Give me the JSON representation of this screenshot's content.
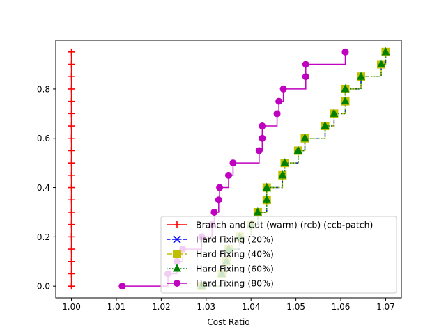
{
  "chart_data": {
    "type": "line",
    "plot_style": "step-post with markers",
    "xlabel": "Cost Ratio",
    "ylabel": "",
    "xlim": [
      0.9965,
      1.0735
    ],
    "ylim": [
      -0.0475,
      0.9975
    ],
    "x_ticks": [
      1.0,
      1.01,
      1.02,
      1.03,
      1.04,
      1.05,
      1.06,
      1.07
    ],
    "x_tick_labels": [
      "1.00",
      "1.01",
      "1.02",
      "1.03",
      "1.04",
      "1.05",
      "1.06",
      "1.07"
    ],
    "y_ticks": [
      0.0,
      0.2,
      0.4,
      0.6,
      0.8
    ],
    "y_tick_labels": [
      "0.0",
      "0.2",
      "0.4",
      "0.6",
      "0.8"
    ],
    "grid": false,
    "legend_position": "lower-right",
    "series": [
      {
        "name": "Branch and Cut (warm) (rcb) (ccb-patch)",
        "color": "#ff0000",
        "marker": "plus",
        "linestyle": "solid",
        "x": [
          1.0,
          1.0,
          1.0,
          1.0,
          1.0,
          1.0,
          1.0,
          1.0,
          1.0,
          1.0,
          1.0,
          1.0,
          1.0,
          1.0,
          1.0,
          1.0,
          1.0,
          1.0,
          1.0,
          1.0
        ],
        "y": [
          0.0,
          0.05,
          0.1,
          0.15,
          0.2,
          0.25,
          0.3,
          0.35,
          0.4,
          0.45,
          0.5,
          0.55,
          0.6,
          0.65,
          0.7,
          0.75,
          0.8,
          0.85,
          0.9,
          0.95
        ]
      },
      {
        "name": "Hard Fixing (20%)",
        "color": "#0000ff",
        "marker": "x",
        "linestyle": "dashed",
        "x": [
          1.029,
          1.0335,
          1.0345,
          1.035,
          1.0375,
          1.04,
          1.0415,
          1.0435,
          1.0435,
          1.047,
          1.0475,
          1.0505,
          1.052,
          1.0565,
          1.0585,
          1.061,
          1.061,
          1.0645,
          1.069,
          1.07
        ],
        "y": [
          0.0,
          0.05,
          0.1,
          0.15,
          0.2,
          0.25,
          0.3,
          0.35,
          0.4,
          0.45,
          0.5,
          0.55,
          0.6,
          0.65,
          0.7,
          0.75,
          0.8,
          0.85,
          0.9,
          0.95
        ]
      },
      {
        "name": "Hard Fixing (40%)",
        "color": "#bfbf00",
        "marker": "square",
        "linestyle": "dashdot",
        "x": [
          1.029,
          1.0335,
          1.0345,
          1.035,
          1.0375,
          1.04,
          1.0415,
          1.0435,
          1.0435,
          1.047,
          1.0475,
          1.0505,
          1.052,
          1.0565,
          1.0585,
          1.061,
          1.061,
          1.0645,
          1.069,
          1.07
        ],
        "y": [
          0.0,
          0.05,
          0.1,
          0.15,
          0.2,
          0.25,
          0.3,
          0.35,
          0.4,
          0.45,
          0.5,
          0.55,
          0.6,
          0.65,
          0.7,
          0.75,
          0.8,
          0.85,
          0.9,
          0.95
        ]
      },
      {
        "name": "Hard Fixing (60%)",
        "color": "#008000",
        "marker": "triangle",
        "linestyle": "dotted",
        "x": [
          1.029,
          1.0335,
          1.0345,
          1.035,
          1.0375,
          1.04,
          1.0415,
          1.0435,
          1.0435,
          1.047,
          1.0475,
          1.0505,
          1.052,
          1.0565,
          1.0585,
          1.061,
          1.061,
          1.0645,
          1.069,
          1.07
        ],
        "y": [
          0.0,
          0.05,
          0.1,
          0.15,
          0.2,
          0.25,
          0.3,
          0.35,
          0.4,
          0.45,
          0.5,
          0.55,
          0.6,
          0.65,
          0.7,
          0.75,
          0.8,
          0.85,
          0.9,
          0.95
        ]
      },
      {
        "name": "Hard Fixing (80%)",
        "color": "#bf00bf",
        "marker": "circle",
        "linestyle": "solid",
        "x": [
          1.0113,
          1.0215,
          1.0235,
          1.0248,
          1.029,
          1.0313,
          1.0318,
          1.0328,
          1.033,
          1.035,
          1.036,
          1.0418,
          1.0425,
          1.0425,
          1.0458,
          1.0462,
          1.0472,
          1.0522,
          1.0522,
          1.061
        ],
        "y": [
          0.0,
          0.05,
          0.1,
          0.15,
          0.2,
          0.25,
          0.3,
          0.35,
          0.4,
          0.45,
          0.5,
          0.55,
          0.6,
          0.65,
          0.7,
          0.75,
          0.8,
          0.85,
          0.9,
          0.95
        ]
      }
    ]
  }
}
